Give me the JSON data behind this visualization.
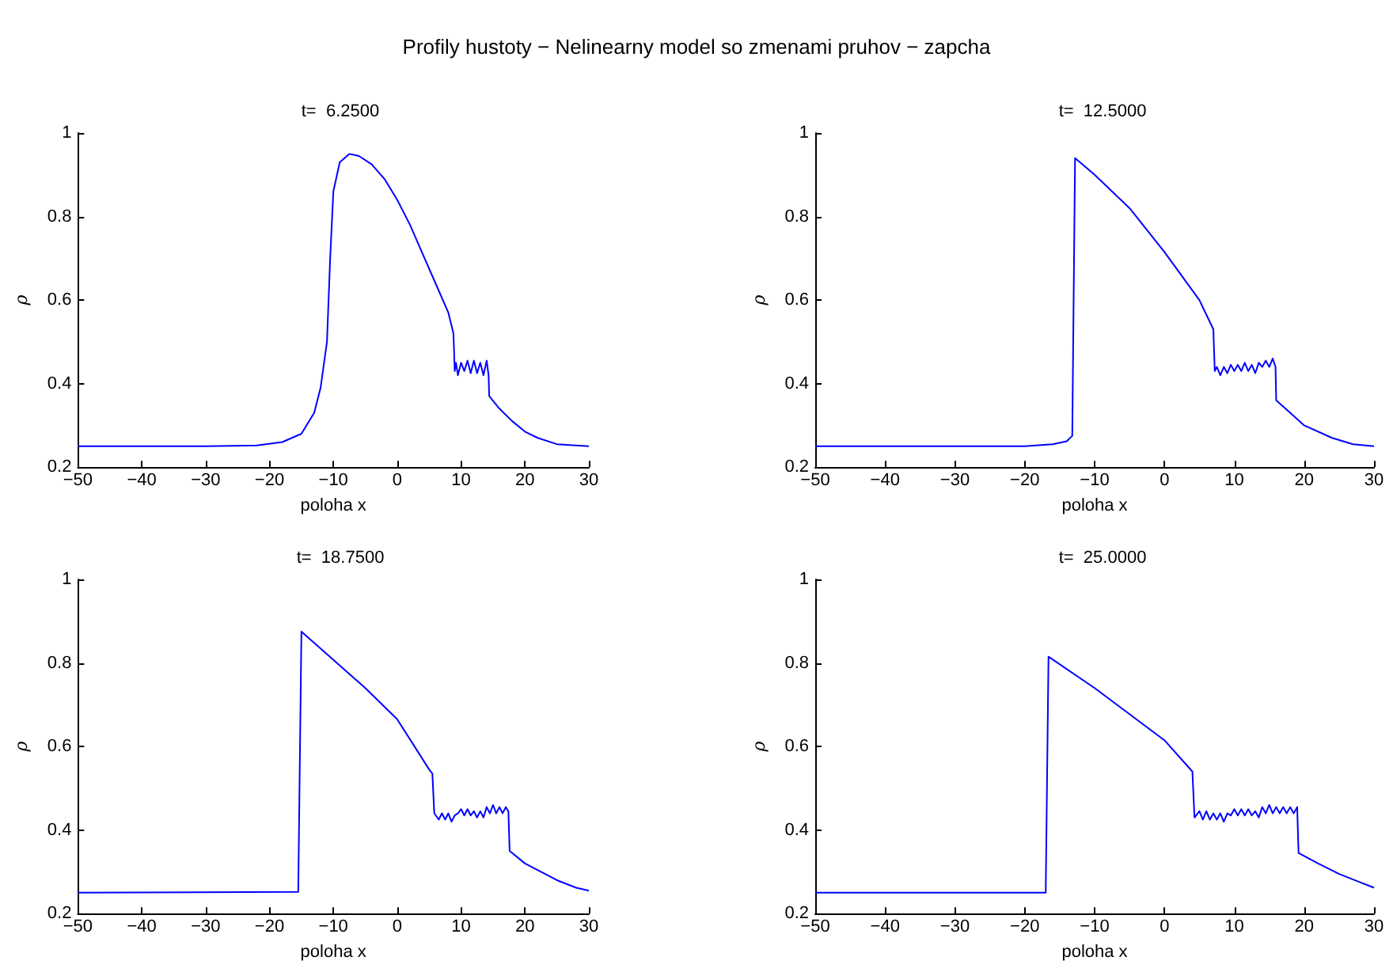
{
  "chart_data": [
    {
      "type": "line",
      "title": "t=  6.2500",
      "xlabel": "poloha x",
      "ylabel": "ρ",
      "annotations": [
        "Profily hustoty − Nelinearny model so zmenami pruhov − zapcha"
      ],
      "marker": "none",
      "grid": false,
      "x": [
        -50,
        -30,
        -22,
        -18,
        -15,
        -13,
        -12,
        -11,
        -10.5,
        -10,
        -9,
        -7.5,
        -6,
        -4,
        -2,
        0,
        2,
        4,
        6,
        8,
        8.8,
        9,
        9.2,
        9.5,
        10,
        10.5,
        11,
        11.5,
        12,
        12.5,
        13,
        13.5,
        14,
        14.3,
        14.4,
        16,
        18,
        20,
        22,
        25,
        30
      ],
      "series": [
        {
          "color": "#0000ff",
          "values": [
            0.25,
            0.25,
            0.252,
            0.26,
            0.28,
            0.33,
            0.39,
            0.5,
            0.7,
            0.86,
            0.93,
            0.95,
            0.945,
            0.925,
            0.89,
            0.84,
            0.78,
            0.71,
            0.64,
            0.57,
            0.52,
            0.43,
            0.45,
            0.42,
            0.45,
            0.43,
            0.455,
            0.425,
            0.455,
            0.425,
            0.45,
            0.42,
            0.455,
            0.42,
            0.37,
            0.34,
            0.31,
            0.285,
            0.27,
            0.255,
            0.25
          ]
        }
      ],
      "xlim": [
        -50,
        30
      ],
      "xticks": [
        -50,
        -40,
        -30,
        -20,
        -10,
        0,
        10,
        20,
        30
      ],
      "ylim": [
        0.2,
        1
      ],
      "yticks": [
        0.2,
        0.4,
        0.6,
        0.8,
        1
      ]
    },
    {
      "type": "line",
      "title": "t=  12.5000",
      "xlabel": "poloha x",
      "ylabel": "ρ",
      "marker": "none",
      "grid": false,
      "x": [
        -50,
        -20,
        -16,
        -14,
        -13.2,
        -12.8,
        -10,
        -5,
        0,
        5,
        7,
        7.2,
        7.5,
        8,
        8.5,
        9,
        9.5,
        10,
        10.5,
        11,
        11.5,
        12,
        12.5,
        13,
        13.5,
        14,
        14.5,
        15,
        15.5,
        15.9,
        16,
        18,
        20,
        24,
        27,
        30
      ],
      "series": [
        {
          "color": "#0000ff",
          "values": [
            0.25,
            0.25,
            0.255,
            0.262,
            0.275,
            0.94,
            0.9,
            0.82,
            0.715,
            0.6,
            0.53,
            0.43,
            0.44,
            0.42,
            0.44,
            0.425,
            0.445,
            0.43,
            0.445,
            0.43,
            0.45,
            0.43,
            0.445,
            0.425,
            0.45,
            0.44,
            0.455,
            0.44,
            0.46,
            0.44,
            0.36,
            0.33,
            0.3,
            0.27,
            0.255,
            0.25
          ]
        }
      ],
      "xlim": [
        -50,
        30
      ],
      "xticks": [
        -50,
        -40,
        -30,
        -20,
        -10,
        0,
        10,
        20,
        30
      ],
      "ylim": [
        0.2,
        1
      ],
      "yticks": [
        0.2,
        0.4,
        0.6,
        0.8,
        1
      ]
    },
    {
      "type": "line",
      "title": "t=  18.7500",
      "xlabel": "poloha x",
      "ylabel": "ρ",
      "marker": "none",
      "grid": false,
      "x": [
        -50,
        -15.5,
        -15,
        -5,
        0,
        5,
        5.5,
        5.8,
        6.5,
        7,
        7.5,
        8,
        8.5,
        9,
        9.5,
        10,
        10.5,
        11,
        11.5,
        12,
        12.5,
        13,
        13.5,
        14,
        14.5,
        15,
        15.5,
        16,
        16.5,
        17,
        17.4,
        17.6,
        20,
        25,
        28,
        30
      ],
      "series": [
        {
          "color": "#0000ff",
          "values": [
            0.25,
            0.252,
            0.875,
            0.74,
            0.665,
            0.545,
            0.535,
            0.44,
            0.425,
            0.44,
            0.425,
            0.44,
            0.42,
            0.435,
            0.44,
            0.45,
            0.435,
            0.45,
            0.435,
            0.445,
            0.43,
            0.445,
            0.43,
            0.455,
            0.44,
            0.46,
            0.44,
            0.455,
            0.44,
            0.455,
            0.445,
            0.35,
            0.32,
            0.28,
            0.262,
            0.255
          ]
        }
      ],
      "xlim": [
        -50,
        30
      ],
      "xticks": [
        -50,
        -40,
        -30,
        -20,
        -10,
        0,
        10,
        20,
        30
      ],
      "ylim": [
        0.2,
        1
      ],
      "yticks": [
        0.2,
        0.4,
        0.6,
        0.8,
        1
      ]
    },
    {
      "type": "line",
      "title": "t=  25.0000",
      "xlabel": "poloha x",
      "ylabel": "ρ",
      "marker": "none",
      "grid": false,
      "x": [
        -50,
        -17,
        -16.6,
        -10,
        0,
        4,
        4.3,
        5,
        5.5,
        6,
        6.5,
        7,
        7.5,
        8,
        8.5,
        9,
        9.5,
        10,
        10.5,
        11,
        11.5,
        12,
        12.5,
        13,
        13.5,
        14,
        14.5,
        15,
        15.5,
        16,
        16.5,
        17,
        17.5,
        18,
        18.5,
        19,
        19.2,
        22,
        25,
        28,
        30
      ],
      "series": [
        {
          "color": "#0000ff",
          "values": [
            0.25,
            0.25,
            0.815,
            0.74,
            0.615,
            0.54,
            0.43,
            0.445,
            0.425,
            0.445,
            0.425,
            0.44,
            0.425,
            0.44,
            0.42,
            0.44,
            0.435,
            0.45,
            0.435,
            0.45,
            0.435,
            0.45,
            0.435,
            0.445,
            0.43,
            0.455,
            0.44,
            0.46,
            0.44,
            0.455,
            0.44,
            0.455,
            0.44,
            0.455,
            0.44,
            0.455,
            0.345,
            0.32,
            0.295,
            0.275,
            0.262
          ]
        }
      ],
      "xlim": [
        -50,
        30
      ],
      "xticks": [
        -50,
        -40,
        -30,
        -20,
        -10,
        0,
        10,
        20,
        30
      ],
      "ylim": [
        0.2,
        1
      ],
      "yticks": [
        0.2,
        0.4,
        0.6,
        0.8,
        1
      ]
    }
  ]
}
